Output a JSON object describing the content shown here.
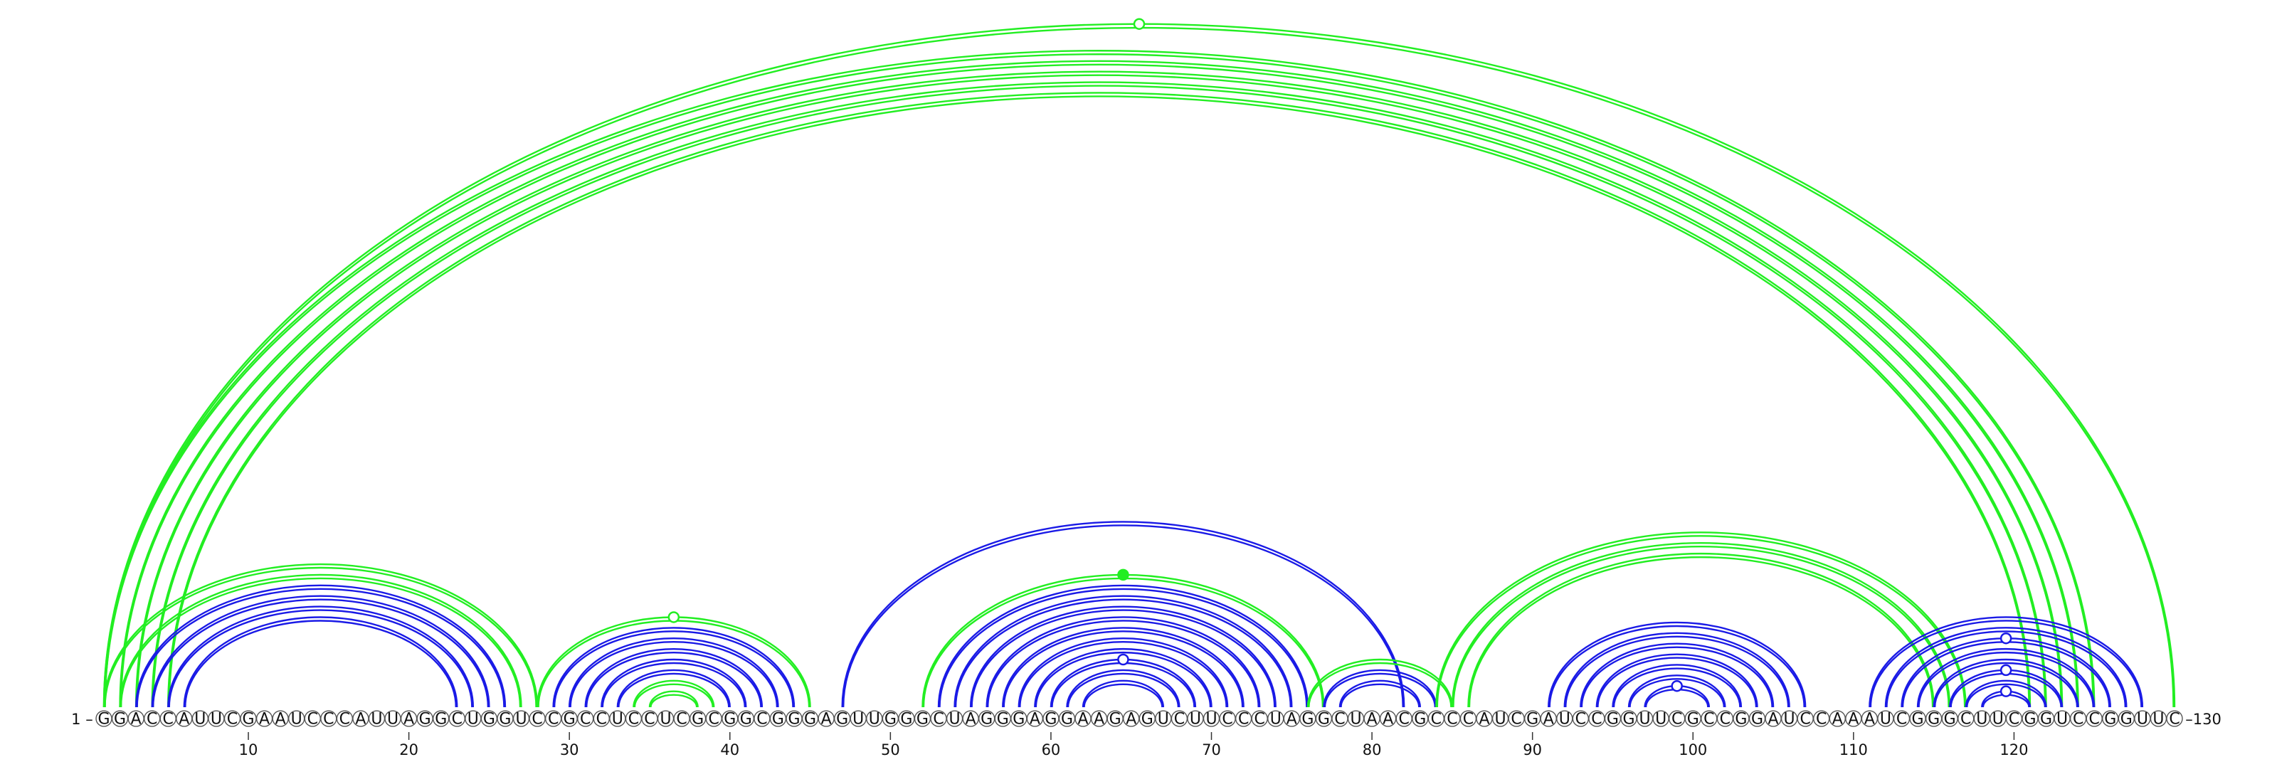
{
  "sequence": "GGACCAUUCGAAUCCCAUUAGGCUGGUCCGCCUCCUCGCGGCGGGAGUUGGGCUAGGGAGGAAGAGUCUUCCCUAGGCUAACGCCCAUCGAUCCGGUUCGCCGGAUCCAAAUCGGGCUUCGGUCCGGUUC",
  "start_label": "1",
  "end_label": "130",
  "ticks": [
    "10",
    "20",
    "30",
    "40",
    "50",
    "60",
    "70",
    "80",
    "90",
    "100",
    "110",
    "120"
  ],
  "colors": {
    "green": "#22ee22",
    "blue": "#1a1ae6"
  },
  "arcs": [
    {
      "i": 1,
      "j": 125,
      "color": "green"
    },
    {
      "i": 2,
      "j": 124,
      "color": "green"
    },
    {
      "i": 3,
      "j": 123,
      "color": "green"
    },
    {
      "i": 4,
      "j": 122,
      "color": "green"
    },
    {
      "i": 5,
      "j": 121,
      "color": "green"
    },
    {
      "i": 1,
      "j": 130,
      "color": "green",
      "mark": "open"
    },
    {
      "i": 1,
      "j": 28,
      "color": "green"
    },
    {
      "i": 2,
      "j": 27,
      "color": "green"
    },
    {
      "i": 3,
      "j": 26,
      "color": "blue"
    },
    {
      "i": 4,
      "j": 25,
      "color": "blue"
    },
    {
      "i": 5,
      "j": 24,
      "color": "blue"
    },
    {
      "i": 6,
      "j": 23,
      "color": "blue"
    },
    {
      "i": 28,
      "j": 45,
      "color": "green",
      "mark": "open"
    },
    {
      "i": 29,
      "j": 44,
      "color": "blue"
    },
    {
      "i": 30,
      "j": 43,
      "color": "blue"
    },
    {
      "i": 31,
      "j": 42,
      "color": "blue"
    },
    {
      "i": 32,
      "j": 41,
      "color": "blue"
    },
    {
      "i": 33,
      "j": 40,
      "color": "blue"
    },
    {
      "i": 34,
      "j": 39,
      "color": "green"
    },
    {
      "i": 35,
      "j": 38,
      "color": "green"
    },
    {
      "i": 47,
      "j": 82,
      "color": "blue"
    },
    {
      "i": 52,
      "j": 77,
      "color": "green",
      "mark": "filled"
    },
    {
      "i": 53,
      "j": 76,
      "color": "blue"
    },
    {
      "i": 54,
      "j": 75,
      "color": "blue"
    },
    {
      "i": 55,
      "j": 74,
      "color": "blue"
    },
    {
      "i": 56,
      "j": 73,
      "color": "blue"
    },
    {
      "i": 57,
      "j": 72,
      "color": "blue"
    },
    {
      "i": 58,
      "j": 71,
      "color": "blue"
    },
    {
      "i": 59,
      "j": 70,
      "color": "blue"
    },
    {
      "i": 60,
      "j": 69,
      "color": "blue",
      "mark": "open"
    },
    {
      "i": 61,
      "j": 68,
      "color": "blue"
    },
    {
      "i": 62,
      "j": 67,
      "color": "blue"
    },
    {
      "i": 76,
      "j": 85,
      "color": "green"
    },
    {
      "i": 77,
      "j": 84,
      "color": "blue"
    },
    {
      "i": 78,
      "j": 83,
      "color": "blue"
    },
    {
      "i": 84,
      "j": 117,
      "color": "green"
    },
    {
      "i": 85,
      "j": 116,
      "color": "green"
    },
    {
      "i": 86,
      "j": 115,
      "color": "green"
    },
    {
      "i": 91,
      "j": 107,
      "color": "blue"
    },
    {
      "i": 92,
      "j": 106,
      "color": "blue"
    },
    {
      "i": 93,
      "j": 105,
      "color": "blue"
    },
    {
      "i": 94,
      "j": 104,
      "color": "blue"
    },
    {
      "i": 95,
      "j": 103,
      "color": "blue"
    },
    {
      "i": 96,
      "j": 102,
      "color": "blue"
    },
    {
      "i": 97,
      "j": 101,
      "color": "blue",
      "mark": "open"
    },
    {
      "i": 111,
      "j": 128,
      "color": "blue"
    },
    {
      "i": 112,
      "j": 127,
      "color": "blue"
    },
    {
      "i": 113,
      "j": 126,
      "color": "blue",
      "mark": "open"
    },
    {
      "i": 114,
      "j": 125,
      "color": "blue"
    },
    {
      "i": 115,
      "j": 124,
      "color": "blue"
    },
    {
      "i": 116,
      "j": 123,
      "color": "blue",
      "mark": "open"
    },
    {
      "i": 117,
      "j": 122,
      "color": "blue"
    },
    {
      "i": 118,
      "j": 121,
      "color": "blue",
      "mark": "open"
    }
  ]
}
